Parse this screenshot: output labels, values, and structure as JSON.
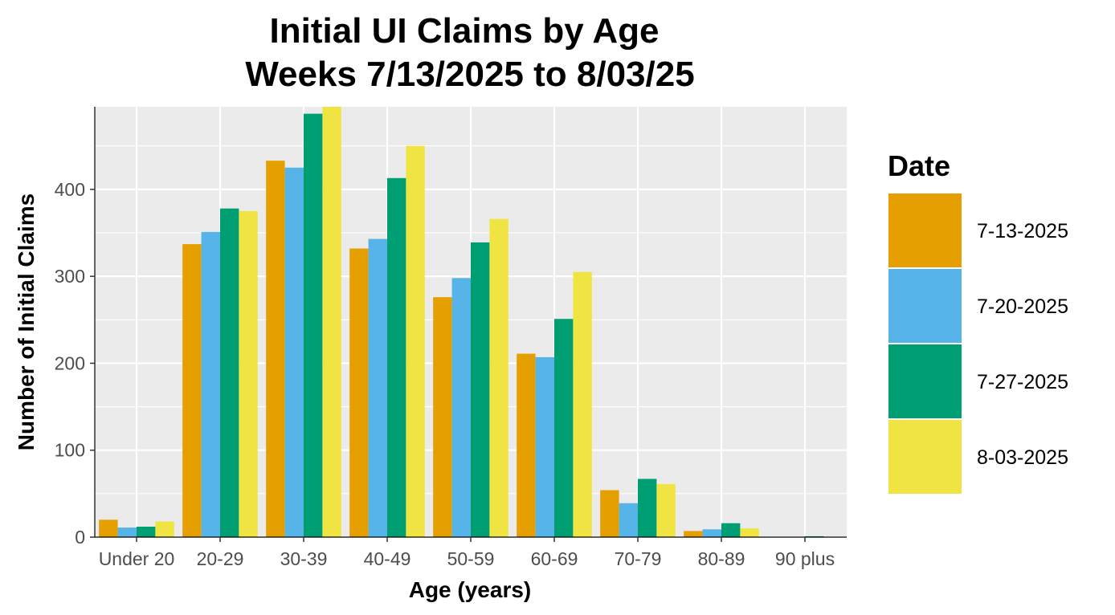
{
  "chart_data": {
    "type": "bar",
    "title": [
      "Initial UI Claims by Age",
      "Weeks  7/13/2025 to 8/03/25"
    ],
    "xlabel": "Age (years)",
    "ylabel": "Number of Initial Claims",
    "categories": [
      "Under 20",
      "20-29",
      "30-39",
      "40-49",
      "50-59",
      "60-69",
      "70-79",
      "80-89",
      "90 plus"
    ],
    "ylim": [
      0,
      495
    ],
    "yticks": [
      0,
      100,
      200,
      300,
      400
    ],
    "grid": true,
    "legend_title": "Date",
    "legend_position": "right",
    "series": [
      {
        "name": "7-13-2025",
        "color": "#E69F00",
        "values": [
          20,
          337,
          433,
          332,
          276,
          211,
          54,
          7,
          0
        ]
      },
      {
        "name": "7-20-2025",
        "color": "#56B4E9",
        "values": [
          11,
          351,
          425,
          343,
          298,
          207,
          39,
          9,
          0
        ]
      },
      {
        "name": "7-27-2025",
        "color": "#009E73",
        "values": [
          12,
          378,
          487,
          413,
          339,
          251,
          67,
          16,
          1
        ]
      },
      {
        "name": "8-03-2025",
        "color": "#F0E442",
        "values": [
          18,
          375,
          495,
          450,
          366,
          305,
          61,
          10,
          0
        ]
      }
    ]
  }
}
